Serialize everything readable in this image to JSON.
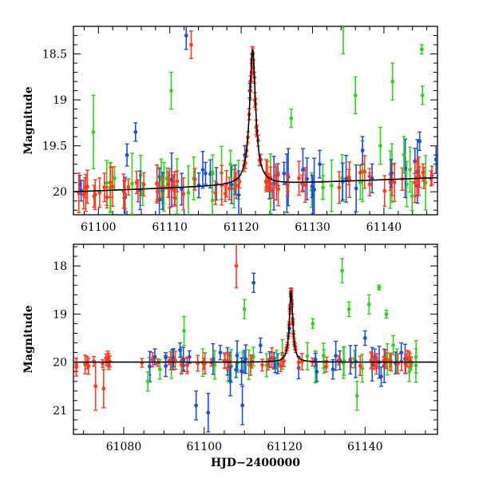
{
  "chart_data": [
    {
      "type": "scatter",
      "title": "",
      "xlabel": "",
      "ylabel": "Magnitude",
      "xlim": [
        61096.5,
        61147.5
      ],
      "ylim": [
        20.25,
        18.2
      ],
      "y_inverted": true,
      "x_ticks": [
        61100,
        61110,
        61120,
        61130,
        61140
      ],
      "x_tick_labels": [
        "61100",
        "61110",
        "61120",
        "61130",
        "61140"
      ],
      "y_ticks": [
        18.5,
        19,
        19.5,
        20
      ],
      "y_tick_labels": [
        "18.5",
        "19",
        "19.5",
        "20"
      ],
      "grid": false,
      "model_curve": {
        "name": "model",
        "color": "#000000",
        "baseline": 20.0,
        "slope_per_day": -0.003,
        "peak_x": 61121.6,
        "peak_mag": 18.45,
        "width_days": 0.5
      },
      "series": [
        {
          "name": "blue",
          "color": "#1f4fd8",
          "points": [
            {
              "x": 61104.0,
              "y": 19.6,
              "err": 0.12
            },
            {
              "x": 61105.2,
              "y": 19.35,
              "err": 0.1
            },
            {
              "x": 61112.3,
              "y": 18.3,
              "err": 0.15
            },
            {
              "x": 61115.0,
              "y": 19.8,
              "err": 0.12
            },
            {
              "x": 61120.5,
              "y": 19.6,
              "err": 0.1
            },
            {
              "x": 61121.2,
              "y": 18.9,
              "err": 0.08
            },
            {
              "x": 61126.0,
              "y": 19.8,
              "err": 0.12
            },
            {
              "x": 61131.0,
              "y": 19.7,
              "err": 0.15
            },
            {
              "x": 61137.0,
              "y": 19.55,
              "err": 0.15
            },
            {
              "x": 61141.0,
              "y": 19.8,
              "err": 0.15
            },
            {
              "x": 61145.0,
              "y": 19.45,
              "err": 0.1
            },
            {
              "x": 61147.3,
              "y": 19.65,
              "err": 0.15
            }
          ]
        },
        {
          "name": "green",
          "color": "#33d11f",
          "points": [
            {
              "x": 61099.3,
              "y": 19.35,
              "err": 0.4
            },
            {
              "x": 61110.2,
              "y": 18.9,
              "err": 0.2
            },
            {
              "x": 61116.0,
              "y": 19.8,
              "err": 0.2
            },
            {
              "x": 61118.5,
              "y": 19.7,
              "err": 0.15
            },
            {
              "x": 61127.0,
              "y": 19.2,
              "err": 0.1
            },
            {
              "x": 61134.3,
              "y": 18.2,
              "err": 0.3
            },
            {
              "x": 61136.0,
              "y": 18.95,
              "err": 0.2
            },
            {
              "x": 61139.5,
              "y": 19.5,
              "err": 0.2
            },
            {
              "x": 61141.2,
              "y": 18.8,
              "err": 0.2
            },
            {
              "x": 61142.8,
              "y": 19.6,
              "err": 0.2
            },
            {
              "x": 61145.3,
              "y": 18.45,
              "err": 0.05
            },
            {
              "x": 61145.4,
              "y": 18.95,
              "err": 0.1
            }
          ]
        },
        {
          "name": "red",
          "color": "#ff3a1e",
          "points": [
            {
              "x": 61113.0,
              "y": 18.4,
              "err": 0.15
            },
            {
              "x": 61121.3,
              "y": 18.9,
              "err": 0.1
            },
            {
              "x": 61121.45,
              "y": 18.7,
              "err": 0.1
            },
            {
              "x": 61121.55,
              "y": 18.5,
              "err": 0.08
            },
            {
              "x": 61121.7,
              "y": 18.65,
              "err": 0.08
            },
            {
              "x": 61121.9,
              "y": 19.0,
              "err": 0.08
            },
            {
              "x": 61122.1,
              "y": 19.3,
              "err": 0.08
            },
            {
              "x": 61123.5,
              "y": 19.8,
              "err": 0.15
            }
          ]
        }
      ]
    },
    {
      "type": "scatter",
      "title": "",
      "xlabel": "HJD−2400000",
      "ylabel": "Magnitude",
      "xlim": [
        61067.5,
        61158
      ],
      "ylim": [
        21.5,
        17.55
      ],
      "y_inverted": true,
      "x_ticks": [
        61080,
        61100,
        61120,
        61140
      ],
      "x_tick_labels": [
        "61080",
        "61100",
        "61120",
        "61140"
      ],
      "y_ticks": [
        18,
        19,
        20,
        21
      ],
      "y_tick_labels": [
        "18",
        "19",
        "20",
        "21"
      ],
      "grid": false,
      "model_curve": {
        "name": "model",
        "color": "#000000",
        "baseline": 20.0,
        "slope_per_day": 0.0,
        "peak_x": 61121.6,
        "peak_mag": 18.5,
        "width_days": 0.5
      },
      "series": [
        {
          "name": "blue",
          "color": "#1f4fd8",
          "points": [
            {
              "x": 61094.0,
              "y": 19.75,
              "err": 0.15
            },
            {
              "x": 61098.0,
              "y": 20.9,
              "err": 0.3
            },
            {
              "x": 61101.0,
              "y": 21.05,
              "err": 0.4
            },
            {
              "x": 61104.0,
              "y": 19.8,
              "err": 0.15
            },
            {
              "x": 61106.5,
              "y": 20.4,
              "err": 0.3
            },
            {
              "x": 61109.5,
              "y": 20.9,
              "err": 0.4
            },
            {
              "x": 61112.3,
              "y": 18.35,
              "err": 0.2
            },
            {
              "x": 61114.0,
              "y": 19.65,
              "err": 0.15
            },
            {
              "x": 61121.2,
              "y": 19.3,
              "err": 0.1
            },
            {
              "x": 61128.0,
              "y": 20.2,
              "err": 0.2
            },
            {
              "x": 61132.0,
              "y": 20.15,
              "err": 0.2
            },
            {
              "x": 61140.0,
              "y": 19.5,
              "err": 0.15
            },
            {
              "x": 61144.0,
              "y": 20.3,
              "err": 0.2
            },
            {
              "x": 61149.0,
              "y": 19.8,
              "err": 0.2
            }
          ]
        },
        {
          "name": "green",
          "color": "#33d11f",
          "points": [
            {
              "x": 61086.0,
              "y": 20.4,
              "err": 0.2
            },
            {
              "x": 61089.0,
              "y": 20.15,
              "err": 0.2
            },
            {
              "x": 61095.0,
              "y": 19.35,
              "err": 0.3
            },
            {
              "x": 61110.0,
              "y": 18.9,
              "err": 0.2
            },
            {
              "x": 61118.0,
              "y": 19.95,
              "err": 0.2
            },
            {
              "x": 61127.0,
              "y": 19.2,
              "err": 0.1
            },
            {
              "x": 61134.3,
              "y": 18.1,
              "err": 0.25
            },
            {
              "x": 61136.0,
              "y": 18.9,
              "err": 0.15
            },
            {
              "x": 61138.0,
              "y": 20.7,
              "err": 0.3
            },
            {
              "x": 61141.0,
              "y": 18.8,
              "err": 0.2
            },
            {
              "x": 61143.5,
              "y": 18.45,
              "err": 0.05
            },
            {
              "x": 61145.3,
              "y": 19.0,
              "err": 0.08
            },
            {
              "x": 61147.0,
              "y": 19.65,
              "err": 0.2
            },
            {
              "x": 61151.0,
              "y": 20.2,
              "err": 0.2
            }
          ]
        },
        {
          "name": "red",
          "color": "#ff3a1e",
          "points": [
            {
              "x": 61073.0,
              "y": 20.5,
              "err": 0.5
            },
            {
              "x": 61075.0,
              "y": 20.55,
              "err": 0.4
            },
            {
              "x": 61108.0,
              "y": 18.0,
              "err": 0.45
            },
            {
              "x": 61121.4,
              "y": 18.9,
              "err": 0.1
            },
            {
              "x": 61121.55,
              "y": 18.55,
              "err": 0.08
            },
            {
              "x": 61121.7,
              "y": 18.7,
              "err": 0.08
            },
            {
              "x": 61122.0,
              "y": 19.1,
              "err": 0.1
            }
          ]
        }
      ]
    }
  ]
}
